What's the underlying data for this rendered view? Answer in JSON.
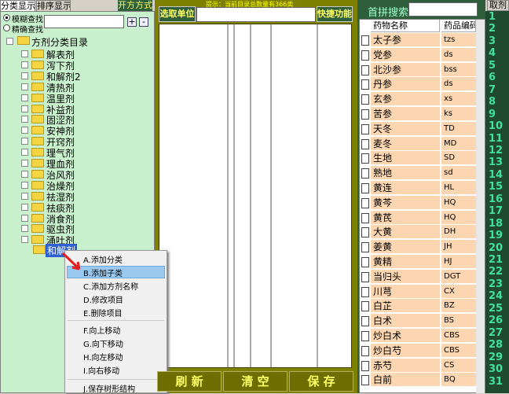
{
  "left_panel": {
    "tabs": [
      "分类显示",
      "排序显示"
    ],
    "mode_button": "开方方式",
    "search_options": [
      "模糊查找",
      "精确查找"
    ],
    "buttons": [
      "+",
      "-"
    ],
    "tree": {
      "root": "方剂分类目录",
      "items": [
        "解表剂",
        "泻下剂",
        "和解剂2",
        "清热剂",
        "温里剂",
        "补益剂",
        "固涩剂",
        "安神剂",
        "开窍剂",
        "理气剂",
        "理血剂",
        "治风剂",
        "治燥剂",
        "祛湿剂",
        "祛痰剂",
        "消食剂",
        "驱虫剂",
        "涌吐剂"
      ],
      "selected": "和解剂"
    }
  },
  "context_menu": {
    "items": [
      "A.添加分类",
      "B.添加子类",
      "C.添加方剂名称",
      "D.修改项目",
      "E.删除项目",
      "F.向上移动",
      "G.向下移动",
      "H.向左移动",
      "I.向右移动",
      "J.保存树形结构"
    ]
  },
  "middle_panel": {
    "unit_button": "选取单位",
    "hint": "提示：当前目录总数量有366类",
    "quick_button": "快捷功能",
    "bottom_buttons": [
      "刷 新",
      "清 空",
      "保 存"
    ]
  },
  "right_panel": {
    "search_label": "首拼搜索",
    "columns": [
      "药物名称",
      "药品编码"
    ],
    "rows": [
      [
        "太子参",
        "tzs"
      ],
      [
        "党参",
        "ds"
      ],
      [
        "北沙参",
        "bss"
      ],
      [
        "丹参",
        "ds"
      ],
      [
        "玄参",
        "xs"
      ],
      [
        "苦参",
        "ks"
      ],
      [
        "天冬",
        "TD"
      ],
      [
        "麦冬",
        "MD"
      ],
      [
        "生地",
        "SD"
      ],
      [
        "熟地",
        "sd"
      ],
      [
        "黄连",
        "HL"
      ],
      [
        "黄芩",
        "HQ"
      ],
      [
        "黄芪",
        "HQ"
      ],
      [
        "大黄",
        "DH"
      ],
      [
        "姜黄",
        "JH"
      ],
      [
        "黄精",
        "HJ"
      ],
      [
        "当归头",
        "DGT"
      ],
      [
        "川芎",
        "CX"
      ],
      [
        "白芷",
        "BZ"
      ],
      [
        "白术",
        "BS"
      ],
      [
        "炒白术",
        "CBS"
      ],
      [
        "炒白芍",
        "CBS"
      ],
      [
        "赤芍",
        "CS"
      ],
      [
        "白前",
        "BQ"
      ]
    ],
    "side_button": "取剂",
    "numbers": [
      "1",
      "2",
      "3",
      "4",
      "5",
      "6",
      "7",
      "8",
      "9",
      "10",
      "11",
      "12",
      "13",
      "14",
      "15",
      "16",
      "17",
      "18",
      "19",
      "20",
      "21",
      "22",
      "23",
      "24",
      "25",
      "26",
      "27",
      "28",
      "29",
      "30",
      "31"
    ]
  }
}
